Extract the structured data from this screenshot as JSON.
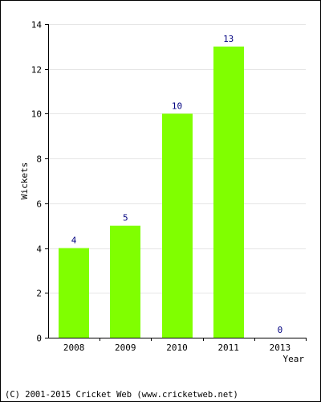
{
  "chart_data": {
    "type": "bar",
    "categories": [
      "2008",
      "2009",
      "2010",
      "2011",
      "2013"
    ],
    "values": [
      4,
      5,
      10,
      13,
      0
    ],
    "data_labels": [
      "4",
      "5",
      "10",
      "13",
      "0"
    ],
    "xlabel": "Year",
    "ylabel": "Wickets",
    "ylim": [
      0,
      14
    ],
    "yticks": [
      "0",
      "2",
      "4",
      "6",
      "8",
      "10",
      "12",
      "14"
    ],
    "grid": true,
    "bar_color": "#80ff00",
    "label_color": "#000080"
  },
  "footer": {
    "text": "(C) 2001-2015 Cricket Web (www.cricketweb.net)"
  }
}
